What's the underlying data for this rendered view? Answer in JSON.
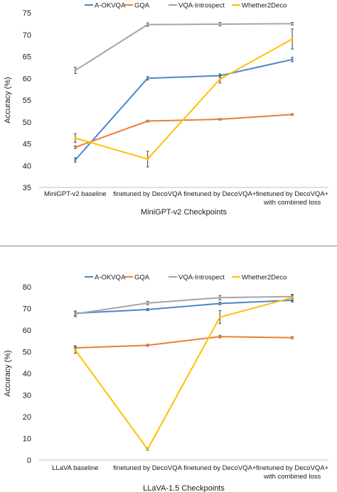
{
  "chart_data": [
    {
      "type": "line",
      "xlabel": "MiniGPT-v2 Checkpoints",
      "ylabel": "Accuracy (%)",
      "ylim": [
        35,
        75
      ],
      "yticks": [
        35,
        40,
        45,
        50,
        55,
        60,
        65,
        70,
        75
      ],
      "grid": false,
      "legend_position": "top",
      "categories": [
        "MiniGPT-v2 baseline",
        "finetuned by DecoVQA",
        "finetuned by DecoVQA+",
        "finetuned by DecoVQA+ with combined loss"
      ],
      "series": [
        {
          "name": "A-OKVQA",
          "color": "#4a86c8",
          "values": [
            41.3,
            60.0,
            60.6,
            64.3
          ],
          "errors": [
            0.5,
            0.4,
            0.4,
            0.5
          ]
        },
        {
          "name": "GQA",
          "color": "#ed7d31",
          "values": [
            44.2,
            50.2,
            50.6,
            51.7
          ],
          "errors": [
            0.3,
            0.2,
            0.2,
            0.2
          ]
        },
        {
          "name": "VQA-Introspect",
          "color": "#a5a5a5",
          "values": [
            61.8,
            72.3,
            72.4,
            72.5
          ],
          "errors": [
            0.7,
            0.4,
            0.4,
            0.3
          ]
        },
        {
          "name": "Whether2Deco",
          "color": "#ffc000",
          "values": [
            46.3,
            41.5,
            59.8,
            69.0
          ],
          "errors": [
            1.0,
            1.8,
            0.9,
            2.3
          ]
        }
      ]
    },
    {
      "type": "line",
      "xlabel": "LLaVA-1.5 Checkpoints",
      "ylabel": "Accuracy (%)",
      "ylim": [
        0,
        80
      ],
      "yticks": [
        0,
        10,
        20,
        30,
        40,
        50,
        60,
        70,
        80
      ],
      "grid": false,
      "legend_position": "top",
      "categories": [
        "LLaVA baseline",
        "finetuned by DecoVQA",
        "finetuned by DecoVQA+",
        "finetuned by DecoVQA+ with combined loss"
      ],
      "series": [
        {
          "name": "A-OKVQA",
          "color": "#4a86c8",
          "values": [
            67.8,
            69.5,
            72.3,
            73.8
          ],
          "errors": [
            1.0,
            0.5,
            0.6,
            0.8
          ]
        },
        {
          "name": "GQA",
          "color": "#ed7d31",
          "values": [
            51.8,
            53.0,
            57.0,
            56.5
          ],
          "errors": [
            1.0,
            0.5,
            0.6,
            0.5
          ]
        },
        {
          "name": "VQA-Introspect",
          "color": "#a5a5a5",
          "values": [
            67.5,
            72.5,
            75.0,
            75.5
          ],
          "errors": [
            1.3,
            0.8,
            1.0,
            0.7
          ]
        },
        {
          "name": "Whether2Deco",
          "color": "#ffc000",
          "values": [
            50.8,
            5.0,
            66.0,
            75.0
          ],
          "errors": [
            1.5,
            0.5,
            3.0,
            1.5
          ]
        }
      ]
    }
  ]
}
